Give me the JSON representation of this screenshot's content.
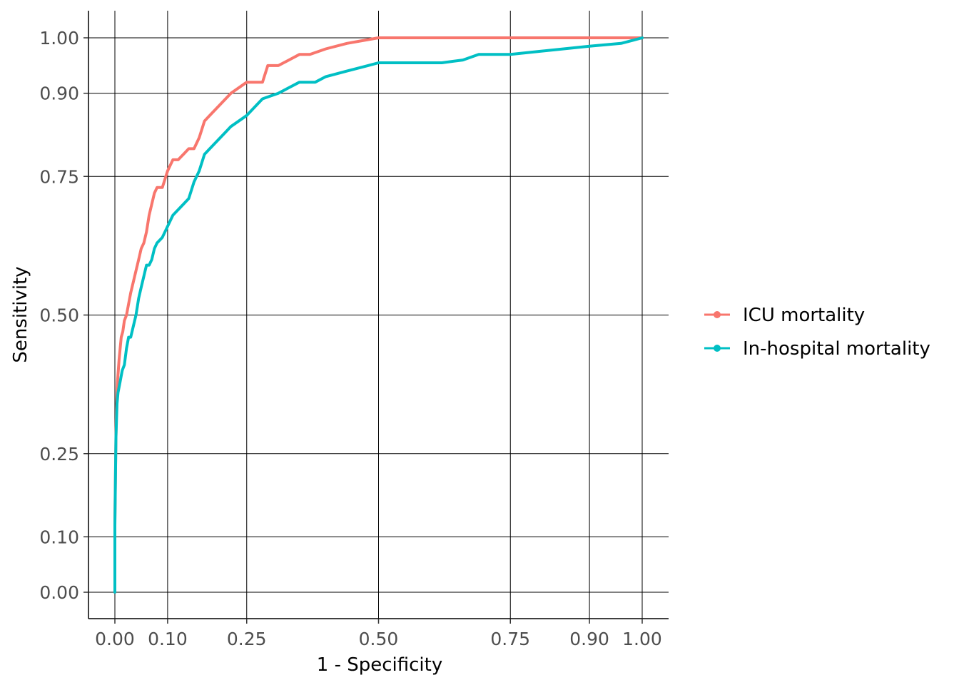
{
  "chart_data": {
    "type": "line",
    "xlabel": "1 - Specificity",
    "ylabel": "Sensitivity",
    "xlim": [
      0,
      1
    ],
    "ylim": [
      0,
      1
    ],
    "x_ticks": [
      0.0,
      0.1,
      0.25,
      0.5,
      0.75,
      0.9,
      1.0
    ],
    "x_tick_labels": [
      "0.00",
      "0.10",
      "0.25",
      "0.50",
      "0.75",
      "0.90",
      "1.00"
    ],
    "y_ticks": [
      0.0,
      0.1,
      0.25,
      0.5,
      0.75,
      0.9,
      1.0
    ],
    "y_tick_labels": [
      "0.00",
      "0.10",
      "0.25",
      "0.50",
      "0.75",
      "0.90",
      "1.00"
    ],
    "grid": true,
    "legend_position": "right",
    "series": [
      {
        "name": "ICU mortality",
        "color": "#F8766D",
        "x": [
          0.0,
          0.0,
          0.002,
          0.003,
          0.005,
          0.008,
          0.012,
          0.015,
          0.018,
          0.022,
          0.026,
          0.03,
          0.035,
          0.04,
          0.045,
          0.05,
          0.055,
          0.06,
          0.065,
          0.07,
          0.075,
          0.08,
          0.085,
          0.09,
          0.1,
          0.105,
          0.11,
          0.12,
          0.13,
          0.14,
          0.15,
          0.16,
          0.17,
          0.18,
          0.19,
          0.2,
          0.22,
          0.25,
          0.26,
          0.28,
          0.29,
          0.31,
          0.33,
          0.35,
          0.37,
          0.4,
          0.44,
          0.47,
          0.5,
          0.6,
          0.7,
          0.8,
          0.9,
          1.0
        ],
        "y": [
          0.0,
          0.13,
          0.28,
          0.33,
          0.38,
          0.42,
          0.46,
          0.47,
          0.49,
          0.5,
          0.52,
          0.54,
          0.56,
          0.58,
          0.6,
          0.62,
          0.63,
          0.65,
          0.68,
          0.7,
          0.72,
          0.73,
          0.73,
          0.73,
          0.76,
          0.77,
          0.78,
          0.78,
          0.79,
          0.8,
          0.8,
          0.82,
          0.85,
          0.86,
          0.87,
          0.88,
          0.9,
          0.92,
          0.92,
          0.92,
          0.95,
          0.95,
          0.96,
          0.97,
          0.97,
          0.98,
          0.99,
          0.995,
          1.0,
          1.0,
          1.0,
          1.0,
          1.0,
          1.0
        ]
      },
      {
        "name": "In-hospital mortality",
        "color": "#00BFC4",
        "x": [
          0.0,
          0.0,
          0.002,
          0.004,
          0.006,
          0.01,
          0.014,
          0.018,
          0.022,
          0.026,
          0.03,
          0.035,
          0.04,
          0.045,
          0.05,
          0.055,
          0.06,
          0.065,
          0.07,
          0.075,
          0.08,
          0.09,
          0.1,
          0.11,
          0.12,
          0.13,
          0.14,
          0.15,
          0.16,
          0.17,
          0.18,
          0.2,
          0.21,
          0.22,
          0.25,
          0.27,
          0.28,
          0.31,
          0.33,
          0.35,
          0.38,
          0.4,
          0.44,
          0.48,
          0.5,
          0.6,
          0.62,
          0.66,
          0.69,
          0.75,
          0.8,
          0.9,
          0.96,
          1.0
        ],
        "y": [
          0.0,
          0.12,
          0.28,
          0.34,
          0.36,
          0.38,
          0.4,
          0.41,
          0.44,
          0.46,
          0.46,
          0.48,
          0.5,
          0.53,
          0.55,
          0.57,
          0.59,
          0.59,
          0.6,
          0.62,
          0.63,
          0.64,
          0.66,
          0.68,
          0.69,
          0.7,
          0.71,
          0.74,
          0.76,
          0.79,
          0.8,
          0.82,
          0.83,
          0.84,
          0.86,
          0.88,
          0.89,
          0.9,
          0.91,
          0.92,
          0.92,
          0.93,
          0.94,
          0.95,
          0.955,
          0.955,
          0.955,
          0.96,
          0.97,
          0.97,
          0.975,
          0.985,
          0.99,
          1.0
        ]
      }
    ]
  }
}
